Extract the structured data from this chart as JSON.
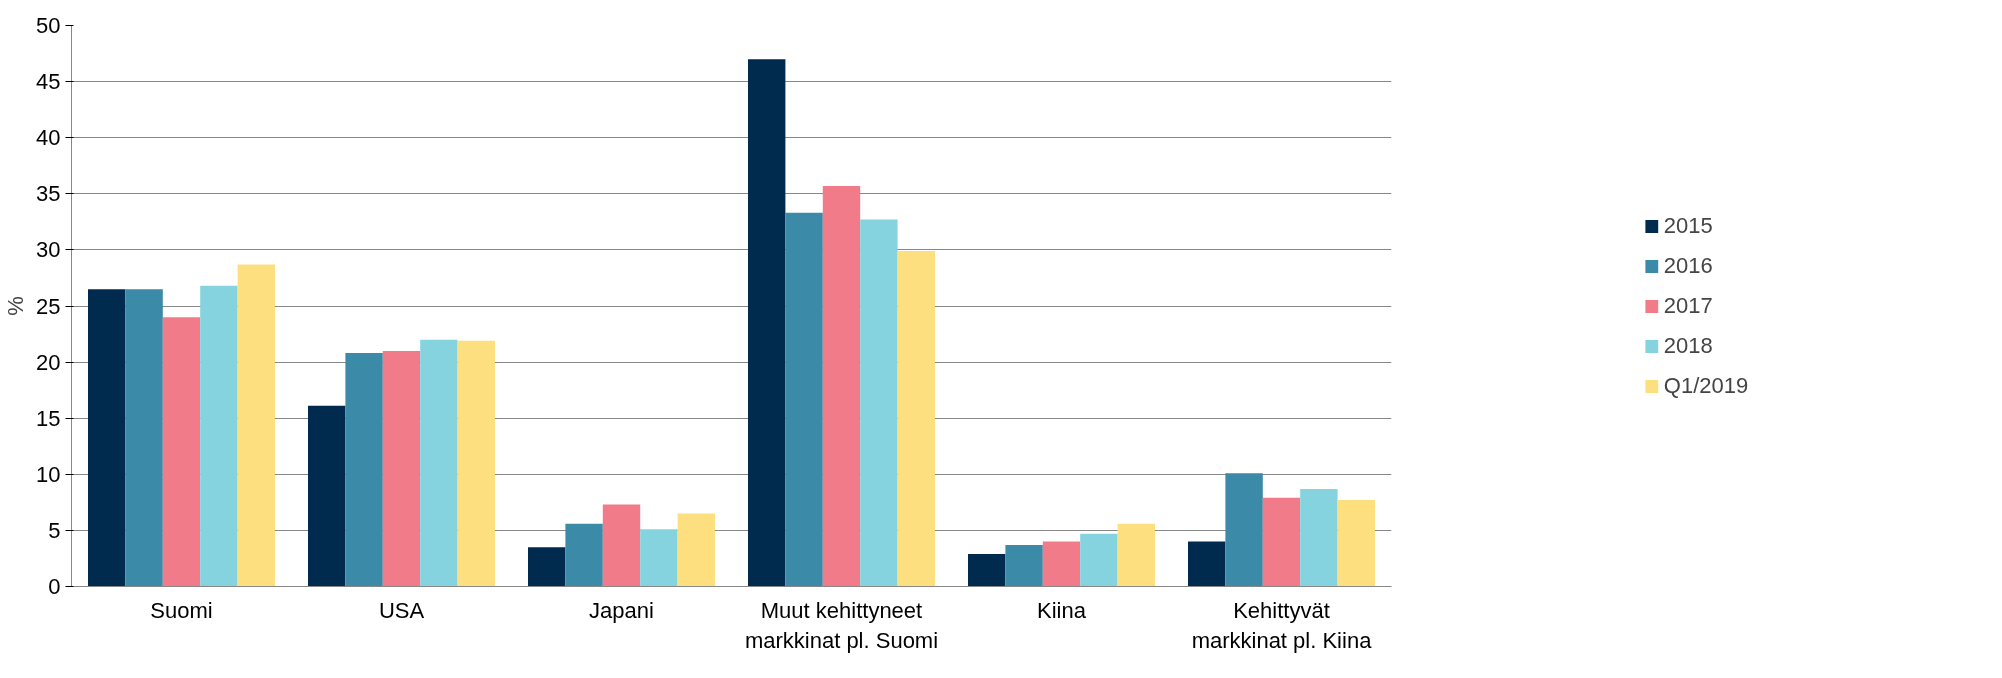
{
  "chart_data": {
    "type": "bar",
    "ylabel": "%",
    "categories": [
      "Suomi",
      "USA",
      "Japani",
      "Muut kehittyneet markkinat pl. Suomi",
      "Kiina",
      "Kehittyvät markkinat pl. Kiina"
    ],
    "series": [
      {
        "name": "2015",
        "color": "#002a4e",
        "values": [
          26.5,
          16.1,
          3.5,
          47.0,
          2.9,
          4.0
        ]
      },
      {
        "name": "2016",
        "color": "#3a8aa8",
        "values": [
          26.5,
          20.8,
          5.6,
          33.3,
          3.7,
          10.1
        ]
      },
      {
        "name": "2017",
        "color": "#f27b8a",
        "values": [
          24.0,
          21.0,
          7.3,
          35.7,
          4.0,
          7.9
        ]
      },
      {
        "name": "2018",
        "color": "#86d3e0",
        "values": [
          26.8,
          22.0,
          5.1,
          32.7,
          4.7,
          8.7
        ]
      },
      {
        "name": "Q1/2019",
        "color": "#fedf80",
        "values": [
          28.7,
          21.9,
          6.5,
          29.9,
          5.6,
          7.7
        ]
      }
    ],
    "ylim": [
      0,
      50
    ],
    "yticks": [
      0,
      5,
      10,
      15,
      20,
      25,
      30,
      35,
      40,
      45,
      50
    ],
    "grid": "y",
    "legend": "right"
  }
}
